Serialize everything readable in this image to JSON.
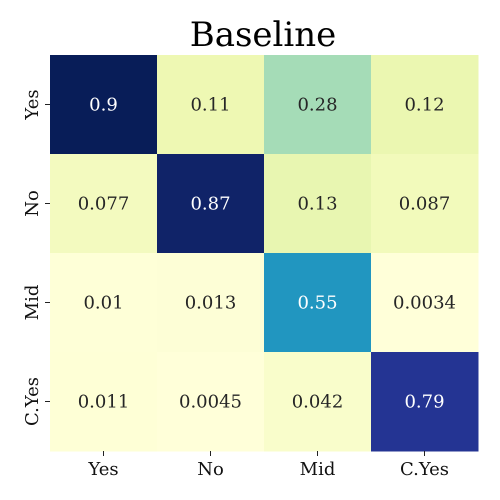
{
  "chart_data": {
    "type": "heatmap",
    "title": "Baseline",
    "x_categories": [
      "Yes",
      "No",
      "Mid",
      "C.Yes"
    ],
    "y_categories": [
      "Yes",
      "No",
      "Mid",
      "C.Yes"
    ],
    "values": [
      [
        0.9,
        0.11,
        0.28,
        0.12
      ],
      [
        0.077,
        0.87,
        0.13,
        0.087
      ],
      [
        0.01,
        0.013,
        0.55,
        0.0034
      ],
      [
        0.011,
        0.0045,
        0.042,
        0.79
      ]
    ],
    "value_labels": [
      [
        "0.9",
        "0.11",
        "0.28",
        "0.12"
      ],
      [
        "0.077",
        "0.87",
        "0.13",
        "0.087"
      ],
      [
        "0.01",
        "0.013",
        "0.55",
        "0.0034"
      ],
      [
        "0.011",
        "0.0045",
        "0.042",
        "0.79"
      ]
    ],
    "colormap": "YlGnBu",
    "colorbar": false,
    "grid": false
  }
}
